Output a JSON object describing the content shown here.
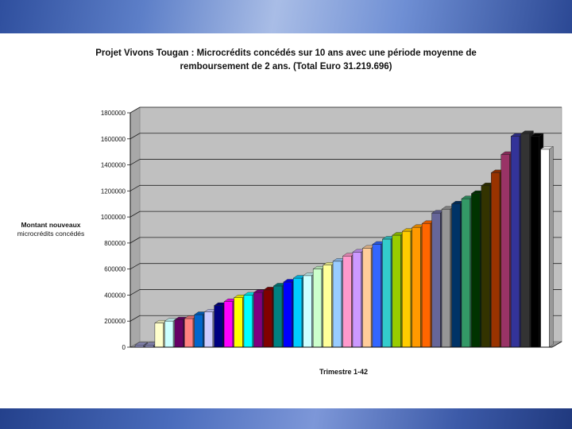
{
  "slide": {
    "title_line1": "Projet Vivons Tougan : Microcrédits concédés sur 10 ans avec une période moyenne de",
    "title_line2": "remboursement de 2 ans. (Total Euro 31.219.696)"
  },
  "chart_data": {
    "type": "bar",
    "title": "Projet Vivons Tougan : Microcrédits concédés sur 10 ans avec une période moyenne de remboursement de 2 ans. (Total Euro 31.219.696)",
    "xlabel": "Trimestre 1-42",
    "ylabel_line1": "Montant nouveaux",
    "ylabel_line2": "microcrédits concédés",
    "ylim": [
      0,
      1800000
    ],
    "yticks": [
      0,
      200000,
      400000,
      600000,
      800000,
      1000000,
      1200000,
      1400000,
      1600000,
      1800000
    ],
    "ytick_labels": [
      "0",
      "200000",
      "400000",
      "600000",
      "800000",
      "1000000",
      "1200000",
      "1400000",
      "1600000",
      "1800000"
    ],
    "grid": true,
    "legend": "none",
    "style": "3d-columns",
    "values": [
      15000,
      15000,
      185000,
      200000,
      210000,
      220000,
      250000,
      270000,
      320000,
      350000,
      380000,
      400000,
      420000,
      440000,
      470000,
      500000,
      530000,
      550000,
      600000,
      630000,
      660000,
      700000,
      730000,
      760000,
      790000,
      830000,
      860000,
      890000,
      920000,
      950000,
      1030000,
      1060000,
      1100000,
      1140000,
      1180000,
      1240000,
      1340000,
      1480000,
      1620000,
      1640000,
      1620000,
      1520000
    ],
    "colors": [
      "#9999cc",
      "#9999cc",
      "#ffffcc",
      "#ccffff",
      "#660066",
      "#ff8080",
      "#0066cc",
      "#ccccff",
      "#000080",
      "#ff00ff",
      "#ffff00",
      "#00ffff",
      "#800080",
      "#800000",
      "#008080",
      "#0000ff",
      "#00ccff",
      "#ccffff",
      "#ccffcc",
      "#ffff99",
      "#99ccff",
      "#ff99cc",
      "#cc99ff",
      "#ffcc99",
      "#3366ff",
      "#33cccc",
      "#99cc00",
      "#ffcc00",
      "#ff9900",
      "#ff6600",
      "#666699",
      "#969696",
      "#003366",
      "#339966",
      "#003300",
      "#333300",
      "#993300",
      "#993366",
      "#333399",
      "#333333",
      "#000000",
      "#ffffff"
    ]
  }
}
